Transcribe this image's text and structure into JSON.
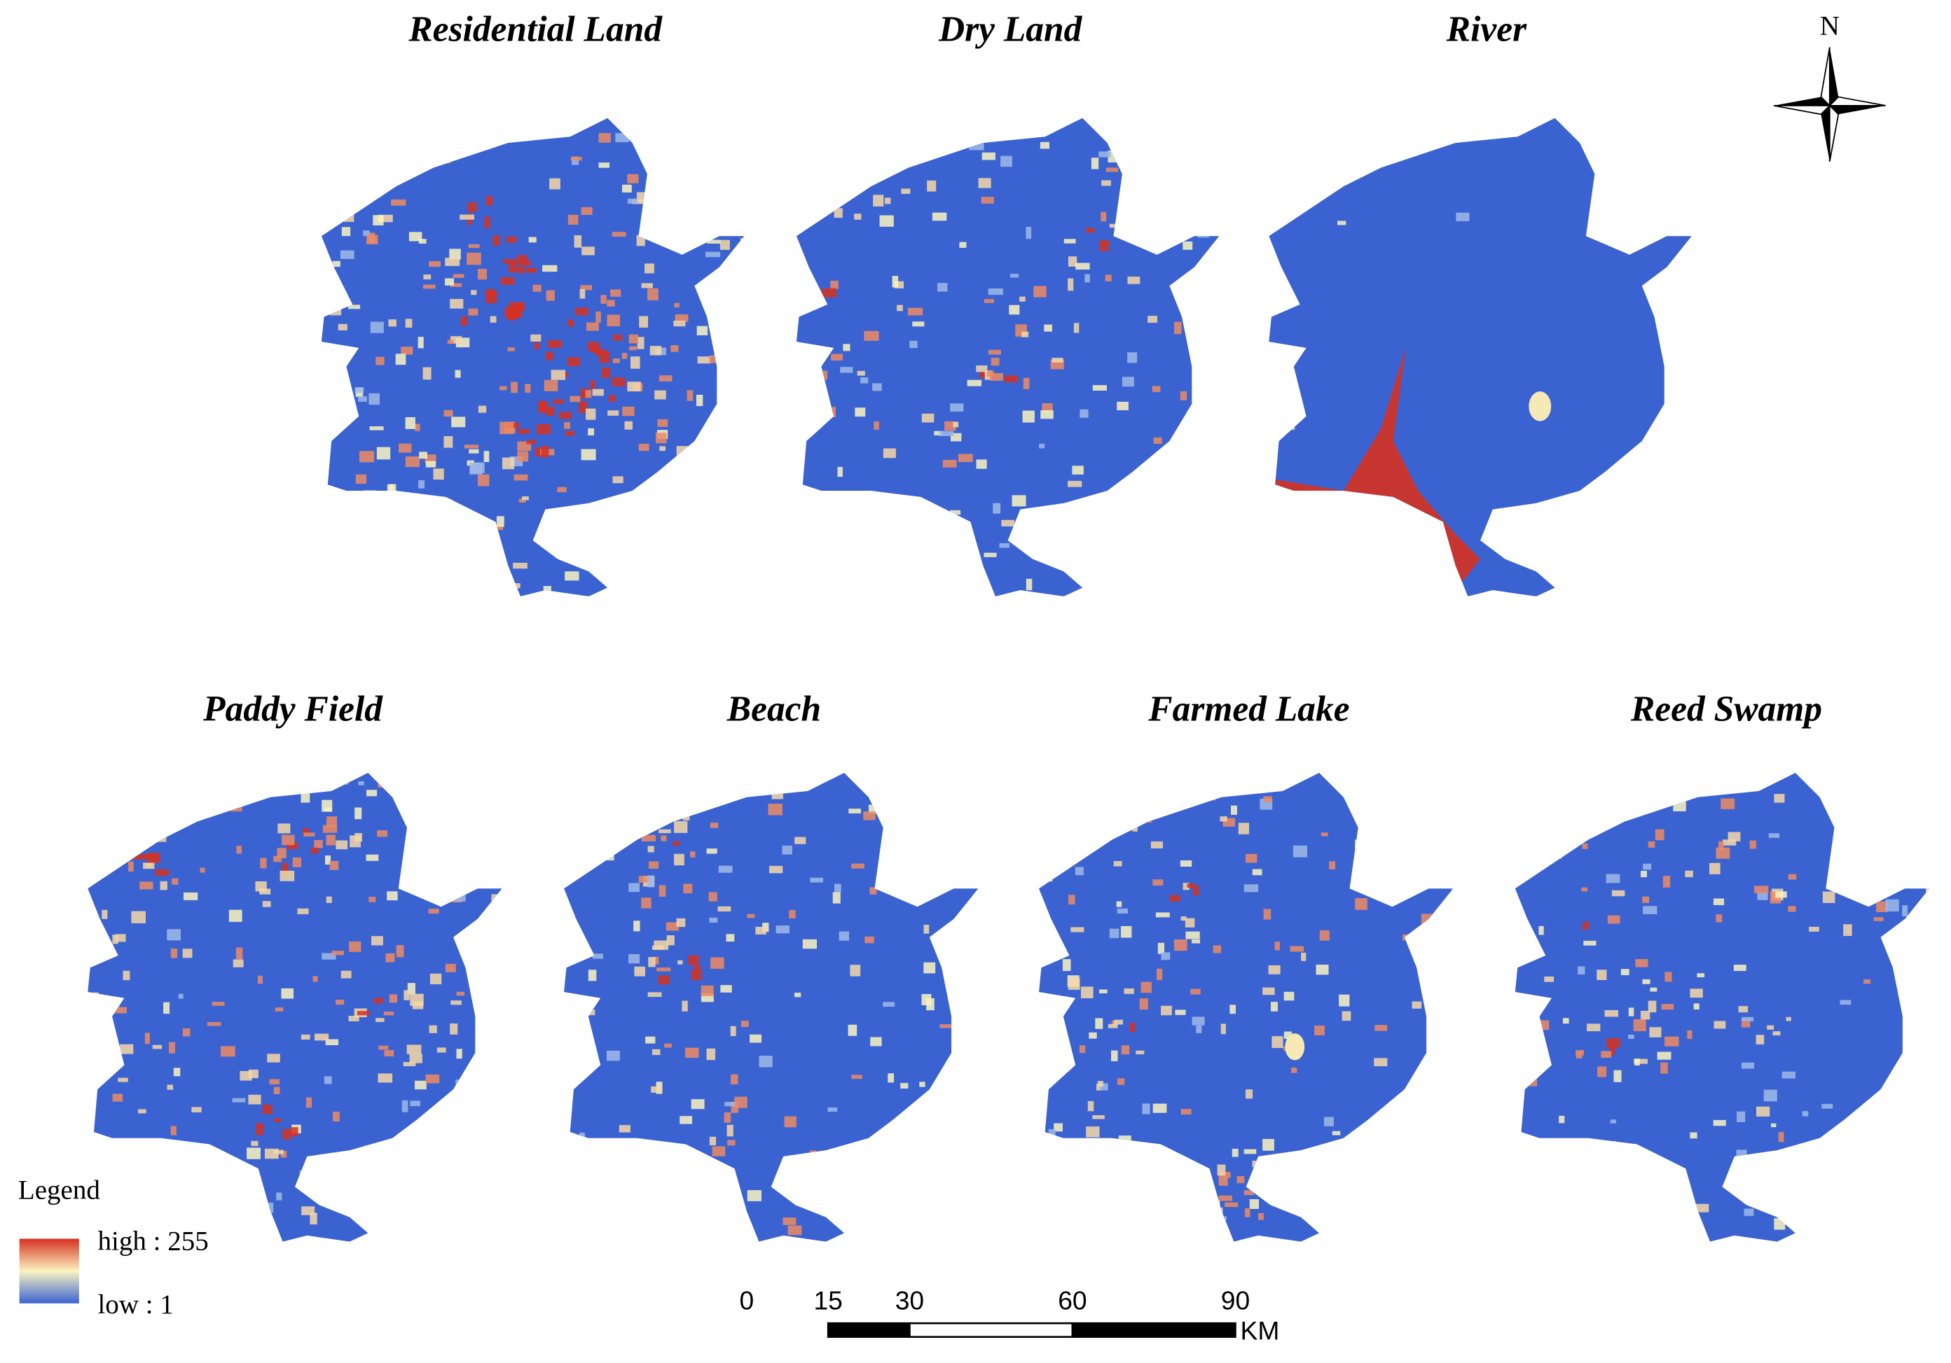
{
  "panels": [
    {
      "title": "Residential Land"
    },
    {
      "title": "Dry Land"
    },
    {
      "title": "River"
    },
    {
      "title": "Paddy Field"
    },
    {
      "title": "Beach"
    },
    {
      "title": "Farmed Lake"
    },
    {
      "title": "Reed Swamp"
    }
  ],
  "north_arrow": {
    "label": "N"
  },
  "legend": {
    "title": "Legend",
    "high": "high : 255",
    "low": "low : 1"
  },
  "scale_bar": {
    "ticks": [
      0,
      15,
      30,
      60,
      90
    ],
    "unit": "KM"
  }
}
